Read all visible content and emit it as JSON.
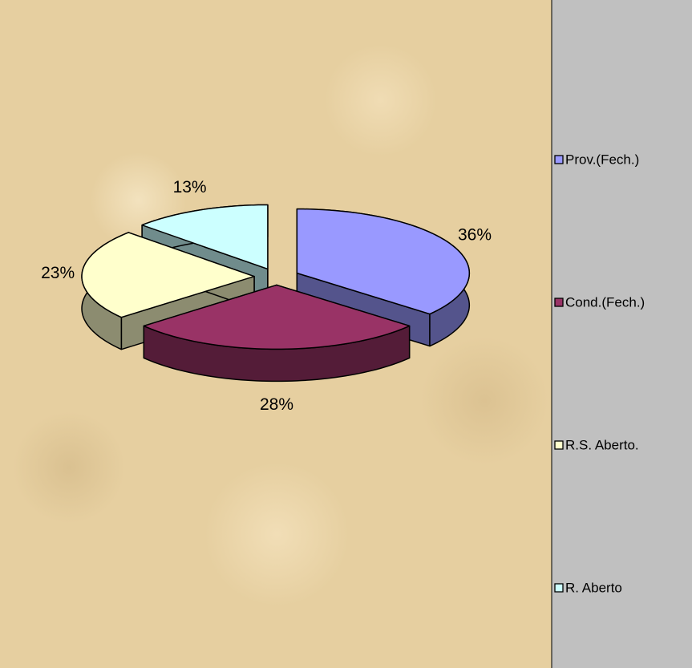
{
  "chart_data": {
    "type": "pie",
    "categories": [
      "Prov.(Fech.)",
      "Cond.(Fech.)",
      "R.S. Aberto.",
      "R. Aberto"
    ],
    "values": [
      36,
      28,
      23,
      13
    ],
    "value_labels": [
      "36%",
      "28%",
      "23%",
      "13%"
    ],
    "colors": [
      "#9999ff",
      "#993366",
      "#ffffcc",
      "#ccffff"
    ],
    "legend": "right"
  }
}
